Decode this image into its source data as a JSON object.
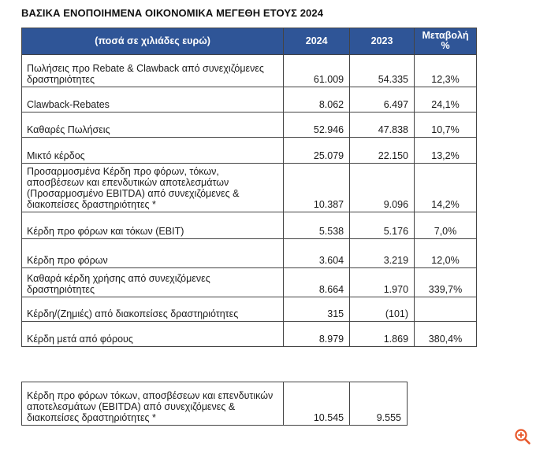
{
  "title": "ΒΑΣΙΚΑ ΕΝΟΠΟΙΗΜΕΝΑ ΟΙΚΟΝΟΜΙΚΑ ΜΕΓΕΘΗ ΕΤΟΥΣ 2024",
  "header": {
    "label": "(ποσά σε χιλιάδες ευρώ)",
    "col_2024": "2024",
    "col_2023": "2023",
    "col_change_line1": "Μεταβολή",
    "col_change_line2": "%"
  },
  "rows": [
    {
      "label": "Πωλήσεις προ Rebate & Clawback από συνεχιζόμενες δραστηριότητες",
      "v2024": "61.009",
      "v2023": "54.335",
      "change": "12,3%"
    },
    {
      "label": "Clawback-Rebates",
      "v2024": "8.062",
      "v2023": "6.497",
      "change": "24,1%"
    },
    {
      "label": "Καθαρές Πωλήσεις",
      "v2024": "52.946",
      "v2023": "47.838",
      "change": "10,7%"
    },
    {
      "label": "Μικτό κέρδος",
      "v2024": "25.079",
      "v2023": "22.150",
      "change": "13,2%"
    },
    {
      "label": "Προσαρμοσμένα Κέρδη προ φόρων, τόκων, αποσβέσεων και επενδυτικών αποτελεσμάτων (Προσαρμοσμένο EBITDA) από συνεχιζόμενες & διακοπείσες δραστηριότητες *",
      "v2024": "10.387",
      "v2023": "9.096",
      "change": "14,2%"
    },
    {
      "label": "Κέρδη προ φόρων και τόκων (EBIT)",
      "v2024": "5.538",
      "v2023": "5.176",
      "change": "7,0%"
    },
    {
      "label": "Κέρδη προ φόρων",
      "v2024": "3.604",
      "v2023": "3.219",
      "change": "12,0%"
    },
    {
      "label": "Καθαρά κέρδη χρήσης από συνεχιζόμενες δραστηριότητες",
      "v2024": "8.664",
      "v2023": "1.970",
      "change": "339,7%"
    },
    {
      "label": "Κέρδη/(Ζημιές) από διακοπείσες δραστηριότητες",
      "v2024": "315",
      "v2023": "(101)",
      "change": ""
    },
    {
      "label": "Κέρδη μετά από φόρους",
      "v2024": "8.979",
      "v2023": "1.869",
      "change": "380,4%"
    }
  ],
  "second_table": {
    "label": "Κέρδη προ φόρων τόκων, αποσβέσεων και επενδυτικών αποτελεσμάτων (EBITDA) από συνεχιζόμενες & διακοπείσες δραστηριότητες *",
    "v2024": "10.545",
    "v2023": "9.555"
  },
  "icons": {
    "zoom": "zoom-in-icon"
  },
  "colors": {
    "header_bg": "#2f5597",
    "header_text": "#ffffff",
    "zoom_icon": "#e8572a"
  }
}
